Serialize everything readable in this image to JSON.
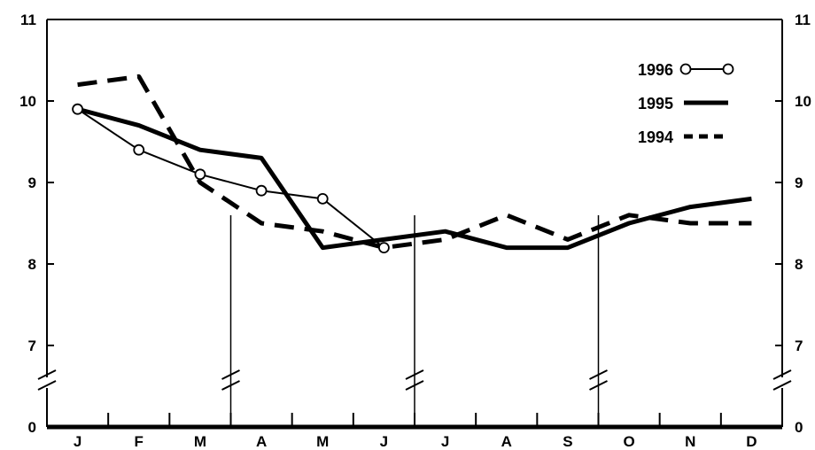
{
  "chart_data": {
    "type": "line",
    "title": "",
    "xlabel": "",
    "ylabel": "",
    "categories": [
      "J",
      "F",
      "M",
      "A",
      "M",
      "J",
      "J",
      "A",
      "S",
      "O",
      "N",
      "D"
    ],
    "y_ticks": [
      "0",
      "7",
      "8",
      "9",
      "10",
      "11"
    ],
    "ylim": [
      7,
      11
    ],
    "axis_break": true,
    "y_axis_both_sides": true,
    "grid": false,
    "legend_position": "top-right",
    "series": [
      {
        "name": "1996",
        "style": "thin-line-open-circles",
        "values": [
          9.9,
          9.4,
          9.1,
          8.9,
          8.8,
          8.2,
          null,
          null,
          null,
          null,
          null,
          null
        ]
      },
      {
        "name": "1995",
        "style": "thick-solid",
        "values": [
          9.9,
          9.7,
          9.4,
          9.3,
          8.2,
          8.3,
          8.4,
          8.2,
          8.2,
          8.5,
          8.7,
          8.8
        ]
      },
      {
        "name": "1994",
        "style": "thick-dashed",
        "values": [
          10.2,
          10.3,
          9.0,
          8.5,
          8.4,
          8.2,
          8.3,
          8.6,
          8.3,
          8.6,
          8.5,
          8.5
        ]
      }
    ],
    "quarter_markers_after": [
      3,
      6,
      9
    ]
  }
}
